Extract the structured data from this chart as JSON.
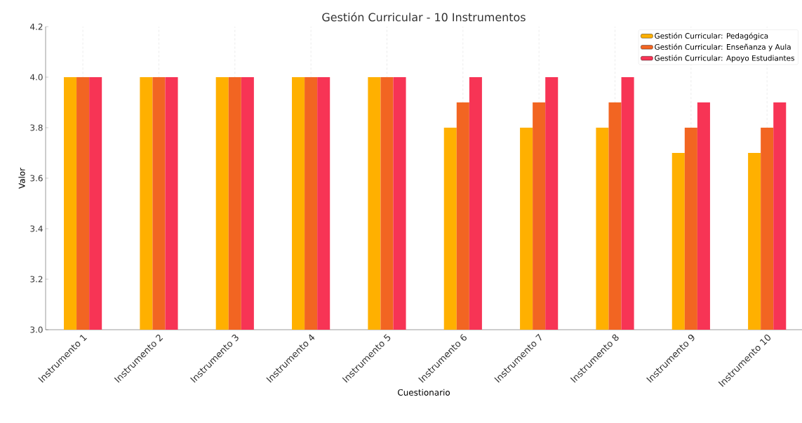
{
  "chart_data": {
    "type": "bar",
    "title": "Gestión Curricular - 10 Instrumentos",
    "xlabel": "Cuestionario",
    "ylabel": "Valor",
    "categories": [
      "Instrumento 1",
      "Instrumento 2",
      "Instrumento 3",
      "Instrumento 4",
      "Instrumento 5",
      "Instrumento 6",
      "Instrumento 7",
      "Instrumento 8",
      "Instrumento 9",
      "Instrumento 10"
    ],
    "series": [
      {
        "name": "Gestión Curricular: Pedagógica",
        "color": "#ffb000",
        "values": [
          4.0,
          4.0,
          4.0,
          4.0,
          4.0,
          3.8,
          3.8,
          3.8,
          3.7,
          3.7
        ]
      },
      {
        "name": "Gestión Curricular: Enseñanza y Aula",
        "color": "#f26522",
        "values": [
          4.0,
          4.0,
          4.0,
          4.0,
          4.0,
          3.9,
          3.9,
          3.9,
          3.8,
          3.8
        ]
      },
      {
        "name": "Gestión Curricular: Apoyo Estudiantes",
        "color": "#f73455",
        "values": [
          4.0,
          4.0,
          4.0,
          4.0,
          4.0,
          4.0,
          4.0,
          4.0,
          3.9,
          3.9
        ]
      }
    ],
    "ylim": [
      3.0,
      4.2
    ],
    "yticks": [
      {
        "value": 3.0,
        "label": "3.0"
      },
      {
        "value": 3.2,
        "label": "3.2"
      },
      {
        "value": 3.4,
        "label": "3.4"
      },
      {
        "value": 3.6,
        "label": "3.6"
      },
      {
        "value": 3.8,
        "label": "3.8"
      },
      {
        "value": 4.0,
        "label": "4.0"
      },
      {
        "value": 4.2,
        "label": "4.2"
      }
    ],
    "grid": "x",
    "legend": "top right"
  }
}
